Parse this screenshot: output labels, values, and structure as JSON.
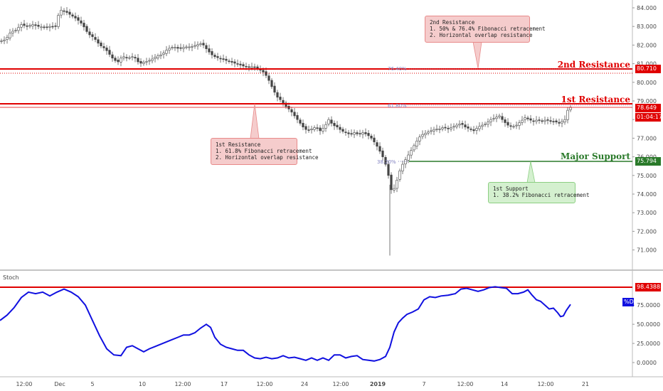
{
  "indicator": {
    "name": "Stoch",
    "badge": "%D",
    "value_tag": "98.4388"
  },
  "levels": {
    "resistance2": {
      "label": "2nd Resistance",
      "price": "80.710",
      "fib": "76.40%"
    },
    "resistance1": {
      "label": "1st Resistance",
      "price": "78.649",
      "countdown": "01:04:17",
      "fib": "61.80%"
    },
    "support": {
      "label": "Major Support",
      "price": "75.794",
      "fib": "38.20%"
    }
  },
  "callouts": {
    "r2": [
      "2nd Resistance",
      "1. 50% & 76.4% Fibonacci retracement",
      "2. Horizontal overlap resistance"
    ],
    "r1": [
      "1st Resistance",
      "1. 61.8% Fibonacci retracement",
      "2. Horizontal overlap resistance"
    ],
    "s1": [
      "1st Support",
      "1. 38.2% Fibonacci retracement"
    ]
  },
  "colors": {
    "resistance": "#e00000",
    "support": "#2a7a2a",
    "stoch": "#1010e0",
    "up": "#4a4a4a",
    "down": "#4a4a4a"
  },
  "chart_data": [
    {
      "type": "candlestick",
      "title": "",
      "y_ticks": [
        "84.000",
        "83.000",
        "82.000",
        "81.000",
        "80.000",
        "79.000",
        "78.000",
        "77.000",
        "76.000",
        "75.000",
        "74.000",
        "73.000",
        "72.000",
        "71.000"
      ],
      "ylim": [
        70.6,
        84.3
      ],
      "x_ticks": [
        "12:00",
        "Dec",
        "5",
        "10",
        "12:00",
        "17",
        "12:00",
        "24",
        "12:00",
        "2019",
        "7",
        "12:00",
        "14",
        "12:00",
        "21"
      ],
      "close_path": [
        [
          0,
          82.2
        ],
        [
          8,
          82.3
        ],
        [
          15,
          82.7
        ],
        [
          22,
          82.8
        ],
        [
          30,
          83.1
        ],
        [
          38,
          83.0
        ],
        [
          46,
          83.1
        ],
        [
          54,
          83.0
        ],
        [
          62,
          82.95
        ],
        [
          70,
          83.0
        ],
        [
          78,
          83.0
        ],
        [
          84,
          83.9
        ],
        [
          92,
          83.8
        ],
        [
          100,
          83.6
        ],
        [
          108,
          83.4
        ],
        [
          116,
          83.1
        ],
        [
          124,
          82.6
        ],
        [
          132,
          82.4
        ],
        [
          140,
          82.0
        ],
        [
          148,
          81.8
        ],
        [
          154,
          81.5
        ],
        [
          160,
          81.2
        ],
        [
          166,
          81.1
        ],
        [
          172,
          81.4
        ],
        [
          180,
          81.3
        ],
        [
          188,
          81.4
        ],
        [
          196,
          81.0
        ],
        [
          204,
          81.1
        ],
        [
          212,
          81.2
        ],
        [
          220,
          81.4
        ],
        [
          228,
          81.5
        ],
        [
          236,
          81.8
        ],
        [
          244,
          81.9
        ],
        [
          252,
          81.8
        ],
        [
          260,
          81.9
        ],
        [
          268,
          81.9
        ],
        [
          276,
          82.0
        ],
        [
          284,
          82.1
        ],
        [
          292,
          81.7
        ],
        [
          300,
          81.4
        ],
        [
          308,
          81.3
        ],
        [
          316,
          81.2
        ],
        [
          324,
          81.1
        ],
        [
          332,
          81.0
        ],
        [
          340,
          80.9
        ],
        [
          348,
          80.8
        ],
        [
          356,
          80.85
        ],
        [
          364,
          80.7
        ],
        [
          372,
          80.5
        ],
        [
          378,
          80.1
        ],
        [
          384,
          79.6
        ],
        [
          390,
          79.2
        ],
        [
          396,
          79.0
        ],
        [
          402,
          78.7
        ],
        [
          408,
          78.5
        ],
        [
          414,
          78.2
        ],
        [
          420,
          77.9
        ],
        [
          426,
          77.6
        ],
        [
          432,
          77.4
        ],
        [
          438,
          77.5
        ],
        [
          444,
          77.6
        ],
        [
          450,
          77.4
        ],
        [
          456,
          77.6
        ],
        [
          462,
          78.0
        ],
        [
          468,
          77.7
        ],
        [
          474,
          77.6
        ],
        [
          480,
          77.4
        ],
        [
          486,
          77.3
        ],
        [
          492,
          77.2
        ],
        [
          498,
          77.3
        ],
        [
          504,
          77.2
        ],
        [
          510,
          77.3
        ],
        [
          516,
          77.2
        ],
        [
          522,
          77.0
        ],
        [
          528,
          76.7
        ],
        [
          534,
          76.3
        ],
        [
          538,
          76.0
        ],
        [
          542,
          75.6
        ],
        [
          546,
          75.0
        ],
        [
          549,
          74.3
        ],
        [
          552,
          74.1
        ],
        [
          556,
          74.5
        ],
        [
          560,
          75.0
        ],
        [
          564,
          75.5
        ],
        [
          568,
          75.7
        ],
        [
          572,
          76.0
        ],
        [
          576,
          76.2
        ],
        [
          580,
          76.5
        ],
        [
          584,
          76.7
        ],
        [
          588,
          77.0
        ],
        [
          594,
          77.2
        ],
        [
          600,
          77.3
        ],
        [
          606,
          77.4
        ],
        [
          612,
          77.5
        ],
        [
          618,
          77.5
        ],
        [
          624,
          77.6
        ],
        [
          630,
          77.5
        ],
        [
          636,
          77.6
        ],
        [
          642,
          77.7
        ],
        [
          648,
          77.8
        ],
        [
          654,
          77.6
        ],
        [
          660,
          77.5
        ],
        [
          666,
          77.4
        ],
        [
          672,
          77.6
        ],
        [
          678,
          77.7
        ],
        [
          684,
          77.8
        ],
        [
          690,
          78.0
        ],
        [
          696,
          78.1
        ],
        [
          702,
          78.2
        ],
        [
          708,
          77.9
        ],
        [
          714,
          77.7
        ],
        [
          720,
          77.6
        ],
        [
          726,
          77.7
        ],
        [
          732,
          77.9
        ],
        [
          738,
          78.1
        ],
        [
          744,
          78.0
        ],
        [
          750,
          77.9
        ],
        [
          756,
          78.0
        ],
        [
          762,
          77.9
        ],
        [
          768,
          78.0
        ],
        [
          774,
          77.9
        ],
        [
          780,
          77.9
        ],
        [
          786,
          77.8
        ],
        [
          790,
          77.9
        ],
        [
          794,
          78.0
        ],
        [
          798,
          78.5
        ],
        [
          802,
          78.65
        ]
      ],
      "fib_levels": [
        {
          "label": "76.40%",
          "price": 80.78
        },
        {
          "label": "61.80%",
          "price": 78.78
        },
        {
          "label": "38.20%",
          "price": 75.78
        }
      ],
      "horizontal_lines": [
        {
          "name": "2nd Resistance",
          "price": 80.71
        },
        {
          "name": "1st Resistance",
          "price": 78.85
        },
        {
          "name": "1st Resistance lower",
          "price": 78.649
        },
        {
          "name": "Major Support",
          "price": 75.794
        }
      ]
    },
    {
      "type": "line",
      "title": "Stoch",
      "series": [
        {
          "name": "%D"
        }
      ],
      "y_ticks": [
        "98.4388",
        "75.0000",
        "50.0000",
        "25.0000",
        "0.0000"
      ],
      "ylim": [
        -8,
        108
      ],
      "threshold": 98.4388,
      "points": [
        [
          0,
          55
        ],
        [
          10,
          62
        ],
        [
          20,
          72
        ],
        [
          30,
          85
        ],
        [
          40,
          92
        ],
        [
          50,
          90
        ],
        [
          60,
          92
        ],
        [
          70,
          87
        ],
        [
          80,
          92
        ],
        [
          90,
          96
        ],
        [
          100,
          92
        ],
        [
          110,
          86
        ],
        [
          120,
          75
        ],
        [
          130,
          55
        ],
        [
          140,
          35
        ],
        [
          150,
          18
        ],
        [
          160,
          10
        ],
        [
          170,
          9
        ],
        [
          178,
          20
        ],
        [
          186,
          22
        ],
        [
          194,
          18
        ],
        [
          202,
          14
        ],
        [
          210,
          18
        ],
        [
          218,
          21
        ],
        [
          226,
          24
        ],
        [
          234,
          27
        ],
        [
          242,
          30
        ],
        [
          250,
          33
        ],
        [
          258,
          36
        ],
        [
          266,
          36
        ],
        [
          274,
          39
        ],
        [
          282,
          45
        ],
        [
          290,
          50
        ],
        [
          296,
          46
        ],
        [
          302,
          33
        ],
        [
          310,
          24
        ],
        [
          318,
          20
        ],
        [
          326,
          18
        ],
        [
          334,
          16
        ],
        [
          342,
          16
        ],
        [
          350,
          10
        ],
        [
          358,
          6
        ],
        [
          366,
          5
        ],
        [
          374,
          7
        ],
        [
          382,
          5
        ],
        [
          390,
          6
        ],
        [
          398,
          9
        ],
        [
          406,
          6
        ],
        [
          414,
          7
        ],
        [
          422,
          5
        ],
        [
          430,
          3
        ],
        [
          438,
          6
        ],
        [
          446,
          3
        ],
        [
          454,
          6
        ],
        [
          462,
          3
        ],
        [
          470,
          10
        ],
        [
          478,
          10
        ],
        [
          486,
          6
        ],
        [
          494,
          8
        ],
        [
          502,
          9
        ],
        [
          510,
          4
        ],
        [
          518,
          3
        ],
        [
          526,
          2
        ],
        [
          534,
          4
        ],
        [
          542,
          8
        ],
        [
          548,
          20
        ],
        [
          554,
          40
        ],
        [
          560,
          52
        ],
        [
          566,
          58
        ],
        [
          572,
          63
        ],
        [
          580,
          66
        ],
        [
          588,
          70
        ],
        [
          596,
          82
        ],
        [
          604,
          86
        ],
        [
          612,
          85
        ],
        [
          620,
          87
        ],
        [
          630,
          88
        ],
        [
          640,
          90
        ],
        [
          648,
          96
        ],
        [
          656,
          97
        ],
        [
          664,
          95
        ],
        [
          672,
          93
        ],
        [
          680,
          95
        ],
        [
          688,
          98
        ],
        [
          696,
          99
        ],
        [
          704,
          98
        ],
        [
          712,
          97
        ],
        [
          720,
          90
        ],
        [
          728,
          90
        ],
        [
          736,
          92
        ],
        [
          742,
          95
        ],
        [
          748,
          88
        ],
        [
          754,
          82
        ],
        [
          760,
          80
        ],
        [
          766,
          75
        ],
        [
          772,
          70
        ],
        [
          778,
          71
        ],
        [
          784,
          65
        ],
        [
          788,
          60
        ],
        [
          792,
          61
        ],
        [
          796,
          68
        ],
        [
          802,
          76
        ]
      ]
    }
  ]
}
